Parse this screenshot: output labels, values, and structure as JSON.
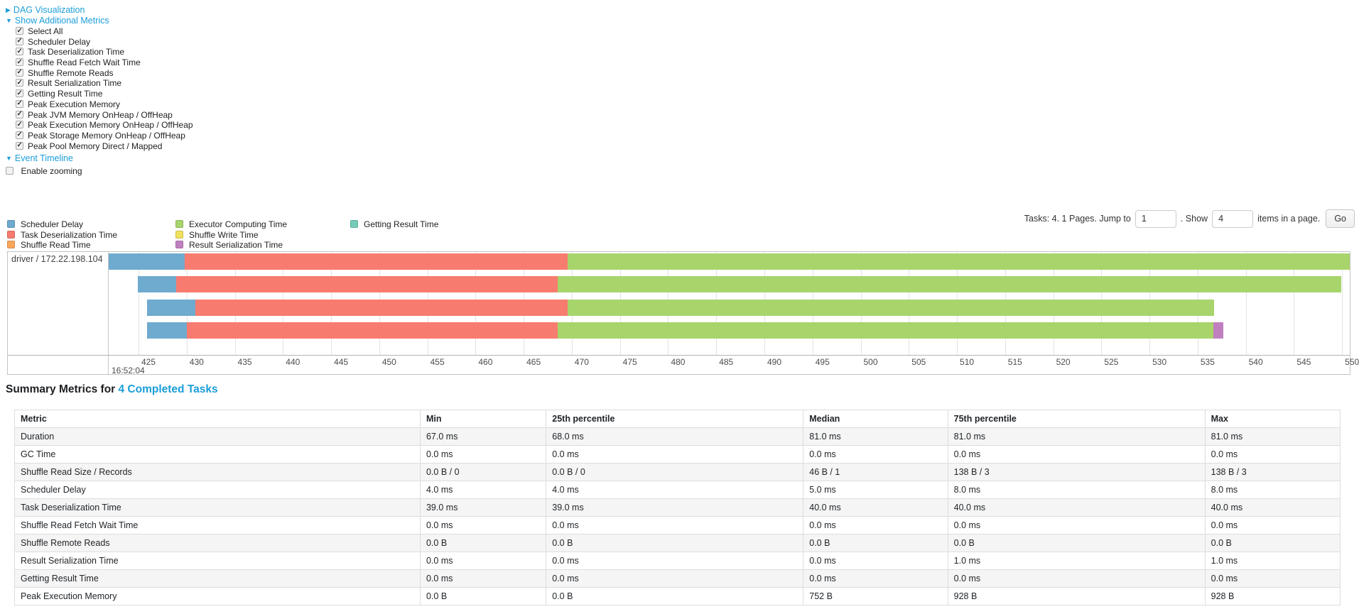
{
  "colors": {
    "link": "#1b9ed9",
    "scheduler_delay": "#6FAACF",
    "task_deserialization": "#F87B6F",
    "shuffle_read": "#F9A65B",
    "executor_computing": "#A8D46C",
    "shuffle_write": "#F0E15C",
    "result_serialization": "#C080C0",
    "getting_result": "#74CCB8"
  },
  "icons": {
    "collapsed": "▶",
    "expanded": "▼"
  },
  "sections": {
    "dag": "DAG Visualization",
    "additional_metrics": "Show Additional Metrics",
    "event_timeline": "Event Timeline"
  },
  "checkboxes": [
    "Select All",
    "Scheduler Delay",
    "Task Deserialization Time",
    "Shuffle Read Fetch Wait Time",
    "Shuffle Remote Reads",
    "Result Serialization Time",
    "Getting Result Time",
    "Peak Execution Memory",
    "Peak JVM Memory OnHeap / OffHeap",
    "Peak Execution Memory OnHeap / OffHeap",
    "Peak Storage Memory OnHeap / OffHeap",
    "Peak Pool Memory Direct / Mapped"
  ],
  "enable_zooming": "Enable zooming",
  "legend": {
    "items": [
      {
        "label": "Scheduler Delay",
        "color_key": "scheduler_delay"
      },
      {
        "label": "Task Deserialization Time",
        "color_key": "task_deserialization"
      },
      {
        "label": "Shuffle Read Time",
        "color_key": "shuffle_read"
      },
      {
        "label": "Executor Computing Time",
        "color_key": "executor_computing"
      },
      {
        "label": "Shuffle Write Time",
        "color_key": "shuffle_write"
      },
      {
        "label": "Result Serialization Time",
        "color_key": "result_serialization"
      },
      {
        "label": "Getting Result Time",
        "color_key": "getting_result"
      }
    ],
    "columns": [
      [
        0,
        1,
        2
      ],
      [
        3,
        4,
        5
      ],
      [
        6
      ]
    ]
  },
  "pagination": {
    "tasks_summary": "Tasks: 4. 1 Pages. Jump to",
    "jump_value": "1",
    "show_label": ". Show",
    "show_value": "4",
    "suffix_label": "items in a page.",
    "go_label": "Go"
  },
  "chart_data": {
    "type": "timeline",
    "group_label": "driver / 172.22.198.104",
    "x_axis": {
      "major_label": "16:52:04",
      "unit": "ms",
      "min": 421.9,
      "max": 550.8,
      "tick_step": 5,
      "ticks": [
        425,
        430,
        435,
        440,
        445,
        450,
        455,
        460,
        465,
        470,
        475,
        480,
        485,
        490,
        495,
        500,
        505,
        510,
        515,
        520,
        525,
        530,
        535,
        540,
        545,
        550
      ]
    },
    "tasks": [
      {
        "segments": [
          {
            "c": "scheduler_delay",
            "t0": 421.9,
            "t1": 429.8
          },
          {
            "c": "task_deserialization",
            "t0": 429.8,
            "t1": 469.6
          },
          {
            "c": "executor_computing",
            "t0": 469.6,
            "t1": 550.8
          }
        ]
      },
      {
        "segments": [
          {
            "c": "scheduler_delay",
            "t0": 424.9,
            "t1": 428.9
          },
          {
            "c": "task_deserialization",
            "t0": 428.9,
            "t1": 468.5
          },
          {
            "c": "executor_computing",
            "t0": 468.5,
            "t1": 549.9
          }
        ]
      },
      {
        "segments": [
          {
            "c": "scheduler_delay",
            "t0": 425.9,
            "t1": 430.9
          },
          {
            "c": "task_deserialization",
            "t0": 430.9,
            "t1": 469.6
          },
          {
            "c": "executor_computing",
            "t0": 469.6,
            "t1": 536.7
          }
        ]
      },
      {
        "segments": [
          {
            "c": "scheduler_delay",
            "t0": 425.9,
            "t1": 430.0
          },
          {
            "c": "task_deserialization",
            "t0": 430.0,
            "t1": 468.5
          },
          {
            "c": "executor_computing",
            "t0": 468.5,
            "t1": 536.6
          },
          {
            "c": "result_serialization",
            "t0": 536.6,
            "t1": 537.7
          }
        ]
      }
    ]
  },
  "summary": {
    "title_prefix": "Summary Metrics for ",
    "title_link": "4 Completed Tasks"
  },
  "table": {
    "headers": [
      "Metric",
      "Min",
      "25th percentile",
      "Median",
      "75th percentile",
      "Max"
    ],
    "col_widths": [
      "30.6%",
      "9.5%",
      "19.4%",
      "10.9%",
      "19.4%",
      "10.2%"
    ],
    "rows": [
      {
        "metric": "Duration",
        "values": [
          "67.0 ms",
          "68.0 ms",
          "81.0 ms",
          "81.0 ms",
          "81.0 ms"
        ]
      },
      {
        "metric": "GC Time",
        "values": [
          "0.0 ms",
          "0.0 ms",
          "0.0 ms",
          "0.0 ms",
          "0.0 ms"
        ]
      },
      {
        "metric": "Shuffle Read Size / Records",
        "values": [
          "0.0 B / 0",
          "0.0 B / 0",
          "46 B / 1",
          "138 B / 3",
          "138 B / 3"
        ]
      },
      {
        "metric": "Scheduler Delay",
        "values": [
          "4.0 ms",
          "4.0 ms",
          "5.0 ms",
          "8.0 ms",
          "8.0 ms"
        ]
      },
      {
        "metric": "Task Deserialization Time",
        "values": [
          "39.0 ms",
          "39.0 ms",
          "40.0 ms",
          "40.0 ms",
          "40.0 ms"
        ]
      },
      {
        "metric": "Shuffle Read Fetch Wait Time",
        "values": [
          "0.0 ms",
          "0.0 ms",
          "0.0 ms",
          "0.0 ms",
          "0.0 ms"
        ]
      },
      {
        "metric": "Shuffle Remote Reads",
        "values": [
          "0.0 B",
          "0.0 B",
          "0.0 B",
          "0.0 B",
          "0.0 B"
        ]
      },
      {
        "metric": "Result Serialization Time",
        "values": [
          "0.0 ms",
          "0.0 ms",
          "0.0 ms",
          "1.0 ms",
          "1.0 ms"
        ]
      },
      {
        "metric": "Getting Result Time",
        "values": [
          "0.0 ms",
          "0.0 ms",
          "0.0 ms",
          "0.0 ms",
          "0.0 ms"
        ]
      },
      {
        "metric": "Peak Execution Memory",
        "values": [
          "0.0 B",
          "0.0 B",
          "752 B",
          "928 B",
          "928 B"
        ]
      }
    ]
  }
}
